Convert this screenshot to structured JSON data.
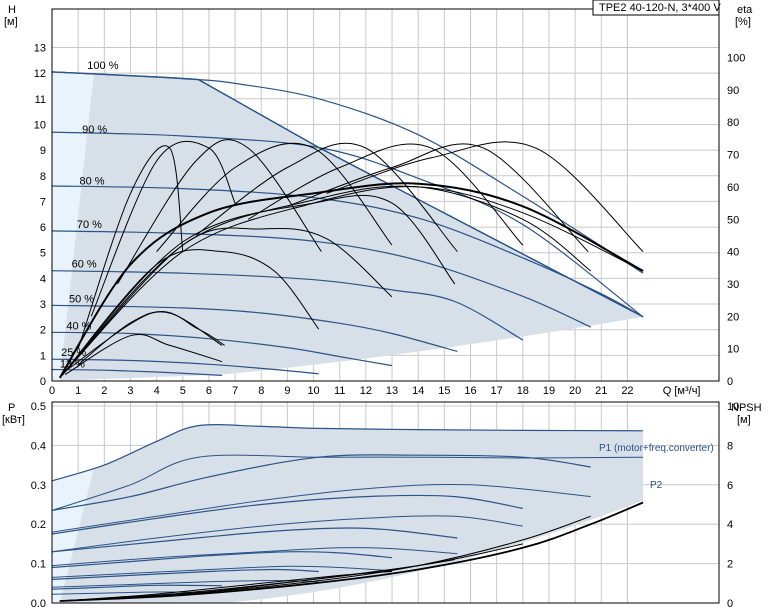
{
  "chart_data": {
    "type": "line",
    "title": "TPE2 40-120-N, 3*400 V",
    "top": {
      "ylabel_left": "H",
      "yunit_left": "[м]",
      "ylabel_right": "eta",
      "yunit_right": "[%]",
      "xlabel": "Q [м³/ч]",
      "xlim": [
        0,
        25.5
      ],
      "ylim": [
        0,
        14.5
      ],
      "ylim_right": [
        0,
        115
      ],
      "xticks": [
        "0",
        "1",
        "2",
        "3",
        "4",
        "5",
        "6",
        "7",
        "8",
        "9",
        "10",
        "11",
        "12",
        "13",
        "14",
        "15",
        "16",
        "17",
        "18",
        "19",
        "20",
        "21",
        "22"
      ],
      "yticks_left": [
        "0",
        "1",
        "2",
        "3",
        "4",
        "5",
        "6",
        "7",
        "8",
        "9",
        "10",
        "11",
        "12",
        "13"
      ],
      "yticks_right": [
        "0",
        "10",
        "20",
        "30",
        "40",
        "50",
        "60",
        "70",
        "80",
        "90",
        "100"
      ],
      "speed_labels": [
        "100 %",
        "90 %",
        "80 %",
        "70 %",
        "60 %",
        "50 %",
        "40 %",
        "25 %",
        "13 %"
      ],
      "operating_envelope": {
        "x": [
          0,
          5.6,
          10.2,
          22.6,
          6.5,
          0
        ],
        "y": [
          12.05,
          11.75,
          9.1,
          2.5,
          0.25,
          0.0
        ]
      },
      "head_curves": [
        {
          "speed": "100 %",
          "x": [
            0,
            2,
            4,
            5.6,
            7,
            10.2,
            14,
            18,
            22.6
          ],
          "y": [
            12.05,
            11.95,
            11.85,
            11.75,
            11.6,
            11.0,
            9.6,
            7.2,
            4.2
          ]
        },
        {
          "speed": "90 %",
          "x": [
            0,
            5,
            10.2,
            14,
            18,
            22.6
          ],
          "y": [
            9.7,
            9.55,
            9.1,
            7.9,
            6.1,
            2.5
          ]
        },
        {
          "speed": "80 %",
          "x": [
            0,
            5,
            10,
            14,
            18,
            21,
            22.6
          ],
          "y": [
            7.6,
            7.5,
            7.15,
            6.35,
            4.8,
            3.4,
            2.5
          ]
        },
        {
          "speed": "70 %",
          "x": [
            0,
            5,
            10,
            14,
            18,
            20.6
          ],
          "y": [
            5.85,
            5.75,
            5.45,
            4.7,
            3.3,
            2.1
          ]
        },
        {
          "speed": "60 %",
          "x": [
            0,
            5,
            10,
            13,
            15.4,
            18
          ],
          "y": [
            4.3,
            4.2,
            3.95,
            3.55,
            3.1,
            1.6
          ]
        },
        {
          "speed": "50 %",
          "x": [
            0,
            5,
            8,
            11,
            13,
            15.5
          ],
          "y": [
            2.95,
            2.85,
            2.65,
            2.25,
            1.85,
            1.15
          ]
        },
        {
          "speed": "40 %",
          "x": [
            0,
            3,
            6,
            9,
            11,
            13
          ],
          "y": [
            1.9,
            1.85,
            1.65,
            1.3,
            0.95,
            0.6
          ]
        },
        {
          "speed": "25 %",
          "x": [
            0,
            3,
            6,
            8.5,
            10.2
          ],
          "y": [
            0.85,
            0.8,
            0.65,
            0.45,
            0.28
          ]
        },
        {
          "speed": "13 %",
          "x": [
            0,
            2,
            4,
            6.5
          ],
          "y": [
            0.45,
            0.42,
            0.35,
            0.22
          ]
        }
      ],
      "eta_curves": [
        {
          "x": [
            0.5,
            3,
            4.5,
            6.5
          ],
          "eta": [
            2,
            14,
            11,
            6
          ]
        },
        {
          "x": [
            0.5,
            3.8,
            5.6,
            6.6
          ],
          "eta": [
            3,
            21,
            16,
            11
          ]
        },
        {
          "x": [
            1.0,
            3.0,
            4.5,
            5.0
          ],
          "eta": [
            10,
            58,
            72,
            40
          ]
        },
        {
          "x": [
            1.5,
            4.0,
            6.0,
            7.0
          ],
          "eta": [
            20,
            68,
            72,
            55
          ]
        },
        {
          "x": [
            2.5,
            5.5,
            7.5,
            10.3
          ],
          "eta": [
            30,
            68,
            72,
            40
          ]
        },
        {
          "x": [
            4.0,
            7.0,
            10.0,
            13.0
          ],
          "eta": [
            40,
            66,
            72,
            42
          ]
        },
        {
          "x": [
            5.5,
            9.0,
            12.0,
            15.5
          ],
          "eta": [
            45,
            66,
            72,
            40
          ]
        },
        {
          "x": [
            7.5,
            11.0,
            14.5,
            18.0
          ],
          "eta": [
            50,
            66,
            72,
            42
          ]
        },
        {
          "x": [
            9.0,
            13.0,
            16.5,
            20.5
          ],
          "eta": [
            54,
            66,
            72,
            40
          ]
        },
        {
          "x": [
            10.5,
            14.5,
            18.5,
            22.6
          ],
          "eta": [
            58,
            69,
            72,
            40
          ]
        },
        {
          "x": [
            0.3,
            5,
            10,
            14,
            18,
            22.6
          ],
          "eta": [
            1,
            40,
            55,
            60,
            52,
            34
          ]
        },
        {
          "x": [
            0.3,
            5,
            10,
            14,
            18,
            20.6
          ],
          "eta": [
            1,
            42,
            56,
            60,
            50,
            34
          ]
        },
        {
          "x": [
            0.3,
            5,
            10,
            13,
            15.4
          ],
          "eta": [
            1,
            43,
            55,
            55,
            30
          ]
        },
        {
          "x": [
            0.3,
            5,
            8,
            10.5,
            13
          ],
          "eta": [
            1,
            42,
            47,
            44,
            26
          ]
        },
        {
          "x": [
            0.3,
            4,
            6.5,
            8.5,
            10.2
          ],
          "eta": [
            1,
            36,
            40,
            34,
            16
          ]
        },
        {
          "x": [
            1,
            3,
            4.5,
            6.5
          ],
          "eta": [
            5,
            18,
            21,
            11
          ]
        }
      ],
      "bep_x": [
        0.3,
        3,
        6,
        10,
        14,
        18,
        22.6
      ],
      "bep_eta": [
        1,
        36,
        52,
        58,
        61,
        54,
        34
      ]
    },
    "bottom": {
      "ylabel_left": "P",
      "yunit_left": "[кВт]",
      "ylabel_right": "NPSH",
      "yunit_right": "[м]",
      "xlim": [
        0,
        25.5
      ],
      "ylim": [
        0,
        0.51
      ],
      "ylim_right": [
        0,
        10.2
      ],
      "yticks_left": [
        "0.0",
        "0.1",
        "0.2",
        "0.3",
        "0.4",
        "0.5"
      ],
      "yticks_right": [
        "0",
        "2",
        "4",
        "6",
        "8",
        "10"
      ],
      "series_labels": [
        "P1 (motor+freq.converter)",
        "P2"
      ],
      "power_envelope": {
        "x": [
          0,
          5.6,
          10.2,
          22.6,
          6.5,
          0
        ],
        "y": [
          0.31,
          0.45,
          0.44,
          0.435,
          0.0,
          0.0
        ]
      },
      "p1_curves": [
        {
          "x": [
            0,
            2,
            4,
            5.6,
            8,
            10.2,
            14,
            18,
            22.6
          ],
          "y": [
            0.31,
            0.35,
            0.41,
            0.45,
            0.448,
            0.443,
            0.44,
            0.438,
            0.437
          ]
        },
        {
          "x": [
            0,
            3,
            6,
            10.2,
            14,
            18,
            20.6
          ],
          "y": [
            0.235,
            0.27,
            0.32,
            0.37,
            0.375,
            0.37,
            0.345
          ]
        },
        {
          "x": [
            0,
            4,
            8,
            12,
            15.4,
            18
          ],
          "y": [
            0.175,
            0.215,
            0.25,
            0.27,
            0.27,
            0.24
          ]
        },
        {
          "x": [
            0,
            4,
            8,
            11,
            13,
            15.5
          ],
          "y": [
            0.13,
            0.155,
            0.18,
            0.19,
            0.185,
            0.165
          ]
        },
        {
          "x": [
            0,
            3,
            6,
            9,
            11,
            13
          ],
          "y": [
            0.09,
            0.105,
            0.12,
            0.13,
            0.127,
            0.115
          ]
        },
        {
          "x": [
            0,
            3,
            6,
            8.5,
            10.2
          ],
          "y": [
            0.06,
            0.07,
            0.08,
            0.085,
            0.08
          ]
        },
        {
          "x": [
            0,
            2,
            4,
            6.5
          ],
          "y": [
            0.035,
            0.04,
            0.045,
            0.044
          ]
        }
      ],
      "p2_curves": [
        {
          "x": [
            0,
            3,
            5.6,
            10.2,
            14,
            18,
            22.6
          ],
          "y": [
            0.235,
            0.3,
            0.37,
            0.37,
            0.37,
            0.368,
            0.37
          ]
        },
        {
          "x": [
            0,
            4,
            8,
            12,
            16,
            20.6
          ],
          "y": [
            0.18,
            0.22,
            0.26,
            0.29,
            0.3,
            0.27
          ]
        },
        {
          "x": [
            0,
            4,
            8,
            12,
            15.4,
            18
          ],
          "y": [
            0.13,
            0.165,
            0.195,
            0.215,
            0.22,
            0.195
          ]
        },
        {
          "x": [
            0,
            4,
            8,
            11,
            13,
            15.5
          ],
          "y": [
            0.095,
            0.115,
            0.13,
            0.14,
            0.138,
            0.125
          ]
        },
        {
          "x": [
            0,
            3,
            6,
            9,
            11,
            13
          ],
          "y": [
            0.065,
            0.075,
            0.085,
            0.093,
            0.09,
            0.082
          ]
        },
        {
          "x": [
            0,
            3,
            6,
            8.5,
            10.2
          ],
          "y": [
            0.04,
            0.047,
            0.054,
            0.057,
            0.054
          ]
        },
        {
          "x": [
            0,
            2,
            4,
            6.5
          ],
          "y": [
            0.022,
            0.025,
            0.028,
            0.027
          ]
        }
      ],
      "npsh_curves": [
        {
          "x": [
            0.3,
            5,
            10,
            14,
            18,
            20.6,
            22.6
          ],
          "npsh": [
            0.1,
            0.4,
            1.0,
            1.7,
            2.8,
            4.0,
            5.1
          ]
        },
        {
          "x": [
            0.3,
            5,
            10,
            14,
            18,
            20.6
          ],
          "npsh": [
            0.1,
            0.45,
            1.1,
            1.9,
            3.2,
            4.4
          ]
        },
        {
          "x": [
            0.3,
            5,
            10,
            14,
            16,
            18
          ],
          "npsh": [
            0.1,
            0.45,
            1.2,
            1.9,
            2.4,
            3.0
          ]
        },
        {
          "x": [
            0.3,
            5,
            10,
            13,
            15.4
          ],
          "npsh": [
            0.1,
            0.5,
            1.2,
            1.7,
            2.2
          ]
        },
        {
          "x": [
            0.3,
            4,
            8,
            11,
            13
          ],
          "npsh": [
            0.1,
            0.45,
            1.0,
            1.4,
            1.6
          ]
        }
      ]
    }
  },
  "colors": {
    "envelope": "#d7dfe9",
    "envelope_light": "#e9f3fc",
    "envelope_border": "#1f4e86",
    "speed_curve": "#2b5487",
    "eta_curve": "#000000",
    "grid": "#c8c8c8"
  }
}
